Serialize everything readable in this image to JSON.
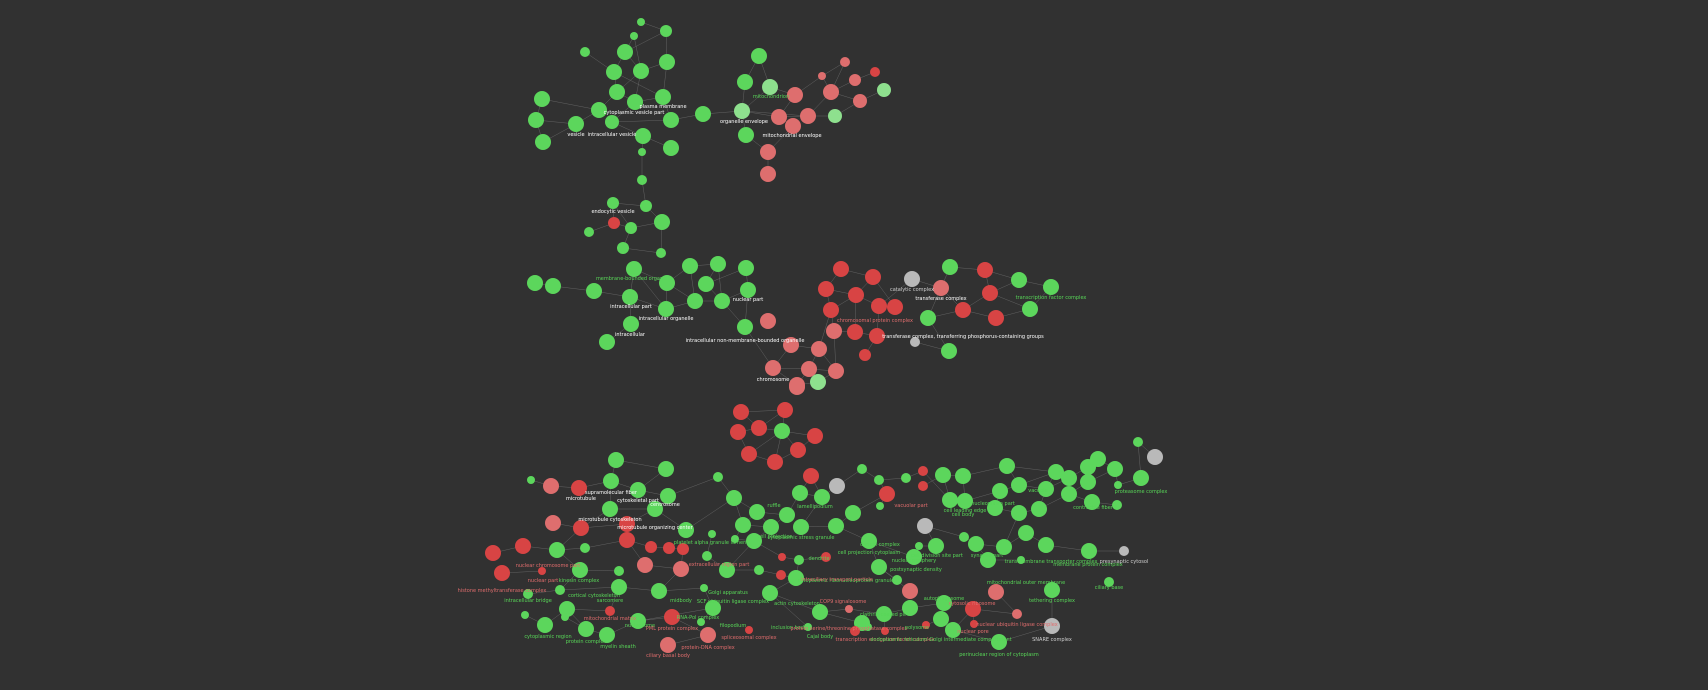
{
  "colors": {
    "background": "#313131",
    "green": "#5cd65c",
    "light_red": "#de6e6e",
    "red": "#d84444",
    "gray": "#b9b9b9",
    "light_green": "#8ee08e"
  },
  "labels": {
    "plasma_membrane": "plasma membrane",
    "cytoplasmic_vesicle_part": "cytoplasmic vesicle part",
    "vesicle": "vesicle",
    "intracellular_vesicle": "intracellular vesicle",
    "mitochondrion": "mitochondrion",
    "organelle_envelope": "organelle envelope",
    "mitochondrial_envelope": "mitochondrial envelope",
    "endocytic_vesicle": "endocytic vesicle",
    "membrane_bounded_organelle": "membrane-bounded organelle",
    "intracellular_part": "intracellular part",
    "intracellular_organelle": "intracellular organelle",
    "intracellular": "intracellular",
    "nuclear_part": "nuclear part",
    "non_membrane_bounded_organelle": "intracellular non-membrane-bounded organelle",
    "chromosome": "chromosome",
    "catalytic_complex": "catalytic complex",
    "transferase_complex": "transferase complex",
    "transferase_phospho": "transferase complex, transferring phosphorus-containing groups",
    "transcription_factor_complex": "transcription factor complex",
    "chromatin_complex": "chromosomal protein complex",
    "microtubule": "microtubule",
    "supramolecular_fiber": "supramolecular fiber",
    "cytoskeletal_part": "cytoskeletal part",
    "centrosome": "centrosome",
    "microtubule_cytoskeleton": "microtubule cytoskeleton",
    "mtoc": "microtubule organizing center",
    "ruffle": "ruffle",
    "lamellipodium": "lamellipodium",
    "cytoplasmic_part": "cytoplasmic part",
    "cell_leading_edge": "cell leading edge",
    "nucleoplasm_part": "nucleoplasm part",
    "vacuole": "vacuole",
    "contractile_fiber": "contractile fiber",
    "proteasome_complex": "proteasome complex",
    "platelet_alpha_granule_lumen": "platelet alpha granule lumen",
    "projection": "cell projection",
    "cytoplasmic_granule": "cytoplasmic ribonucleoprotein granule",
    "cell_division_site": "cell division site part",
    "cytoplasmic_stress_granule": "cytoplasmic stress granule",
    "synapse_part": "synapse part",
    "nuclear_periphery": "nuclear periphery",
    "transmembrane_transporter_complex": "transmembrane transporter complex",
    "membrane_protein_complex": "membrane protein complex",
    "presynaptic_cytosol": "presynaptic cytosol",
    "cilium_base": "ciliary base",
    "bicellular_tight_junction": "intracellular bridge",
    "ciliary_transition_zone": "ciliary transition zone",
    "kinetochore": "nuclear part",
    "kinesin_complex": "kinesin complex",
    "microtubule_end": "cortical cytoskeleton",
    "sarcomere": "sarcomere",
    "midbody": "midbody",
    "cytoplasmic_region": "cytoplasmic region",
    "protein_complex": "protein complex",
    "myelin_sheath": "myelin sheath",
    "intracellular_bridge": "intracellular bridge",
    "mitochondrial_matrix": "mitochondrial matrix",
    "nucleosome": "nucleosome",
    "pml_body": "PML protein complex",
    "mrna_complex": "RNA-Pol complex",
    "ciliary_basal_body": "ciliary basal body",
    "protein_dna_complex": "protein-DNA complex",
    "spliceosomal": "spliceosomal complex",
    "filopodium": "filopodium",
    "ubiquitin_ligase": "SCF ubiquitin ligase complex",
    "inclusion_body": "inclusion body",
    "cajal_body": "Cajal body",
    "protein_serine": "protein serine/threonine phosphatase complex",
    "transcription_elongation": "transcription elongation factor complex",
    "cop9": "COP9 signalosome",
    "actin_cytoskeleton": "actin cytoskeleton",
    "clathrin_coated_pit": "clathrin-coated pit",
    "polysome": "polysome",
    "er_golgi": "endoplasmic reticulum-Golgi intermediate compartment",
    "nuclear_pore": "nuclear pore",
    "nuclear_ubiquitin": "nuclear ubiquitin ligase complex",
    "perinuclear_region": "perinuclear region of cytoplasm",
    "snare_complex": "SNARE complex",
    "tethering_complex": "tethering complex",
    "mito_outer_membrane": "mitochondrial outer membrane",
    "autophagosome": "autophagosome",
    "cytosolic_ribosome": "cytosolic ribosome",
    "polymerase_complex": "DNA polymerase complex",
    "golgi_apparatus": "Golgi apparatus",
    "dendrite": "dendrite",
    "extracellular": "extracellular region part",
    "transport_particle": "intraciliary transport particle",
    "vacuolar_part": "vacuolar part",
    "cell_body": "cell body",
    "dynein_complex": "dynein complex",
    "cell_projection_cytoplasm": "cell projection cytoplasm",
    "postsynaptic_density": "postsynaptic density",
    "nuclear_chromosome_part": "nuclear chromosome part",
    "histone_methyltransferase": "histone methyltransferase complex"
  }
}
